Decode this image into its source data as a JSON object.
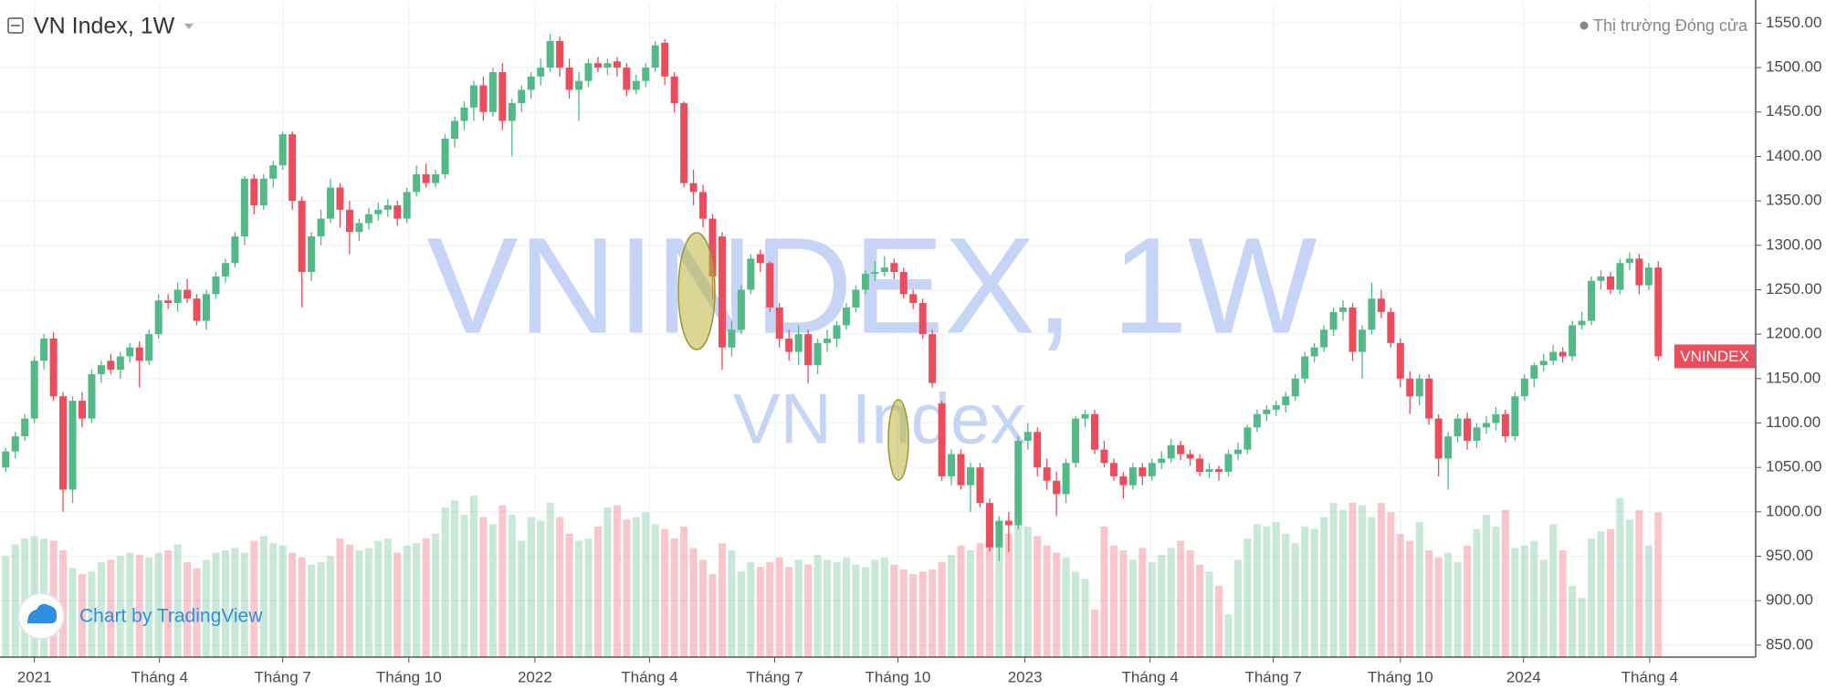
{
  "chart_data": {
    "type": "candlestick",
    "title": "VN Index, 1W",
    "status": "Thị trường Đóng cửa",
    "watermark": "VNINDEX, 1W",
    "watermark_subtitle": "VN Index",
    "branding": "Chart by TradingView",
    "last_label": "VNINDEX",
    "up_color": "#53b987",
    "down_color": "#eb4d5c",
    "grid": true,
    "ylim": [
      836.5,
      1572
    ],
    "yticks": [
      {
        "value": 850,
        "label": "850.00"
      },
      {
        "value": 900,
        "label": "900.00"
      },
      {
        "value": 950,
        "label": "950.00"
      },
      {
        "value": 1000,
        "label": "1000.00"
      },
      {
        "value": 1050,
        "label": "1050.00"
      },
      {
        "value": 1100,
        "label": "1100.00"
      },
      {
        "value": 1150,
        "label": "1150.00"
      },
      {
        "value": 1200,
        "label": "1200.00"
      },
      {
        "value": 1250,
        "label": "1250.00"
      },
      {
        "value": 1300,
        "label": "1300.00"
      },
      {
        "value": 1350,
        "label": "1350.00"
      },
      {
        "value": 1400,
        "label": "1400.00"
      },
      {
        "value": 1450,
        "label": "1450.00"
      },
      {
        "value": 1500,
        "label": "1500.00"
      },
      {
        "value": 1550,
        "label": "1550.00"
      }
    ],
    "xlim": [
      -0.6,
      183.2
    ],
    "xticks": [
      {
        "value": 3,
        "label": "2021"
      },
      {
        "value": 16.1,
        "label": "Tháng 4"
      },
      {
        "value": 29,
        "label": "Tháng 7"
      },
      {
        "value": 42.2,
        "label": "Tháng 10"
      },
      {
        "value": 55.4,
        "label": "2022"
      },
      {
        "value": 67.4,
        "label": "Tháng 4"
      },
      {
        "value": 80.5,
        "label": "Tháng 7"
      },
      {
        "value": 93.4,
        "label": "Tháng 10"
      },
      {
        "value": 106.7,
        "label": "2023"
      },
      {
        "value": 119.8,
        "label": "Tháng 4"
      },
      {
        "value": 132.7,
        "label": "Tháng 7"
      },
      {
        "value": 146,
        "label": "Tháng 10"
      },
      {
        "value": 158.9,
        "label": "2024"
      },
      {
        "value": 172.1,
        "label": "Tháng 4"
      }
    ],
    "candles": [
      [
        1050,
        1072,
        1045,
        1068
      ],
      [
        1068,
        1090,
        1060,
        1085
      ],
      [
        1085,
        1110,
        1080,
        1105
      ],
      [
        1105,
        1175,
        1100,
        1170
      ],
      [
        1170,
        1200,
        1160,
        1195
      ],
      [
        1195,
        1202,
        1125,
        1130
      ],
      [
        1130,
        1135,
        1000,
        1025
      ],
      [
        1025,
        1130,
        1010,
        1125
      ],
      [
        1125,
        1135,
        1095,
        1105
      ],
      [
        1105,
        1160,
        1100,
        1155
      ],
      [
        1155,
        1170,
        1145,
        1165
      ],
      [
        1170,
        1178,
        1155,
        1160
      ],
      [
        1160,
        1180,
        1150,
        1175
      ],
      [
        1175,
        1190,
        1168,
        1185
      ],
      [
        1185,
        1192,
        1140,
        1170
      ],
      [
        1170,
        1205,
        1165,
        1200
      ],
      [
        1200,
        1245,
        1195,
        1238
      ],
      [
        1238,
        1245,
        1228,
        1235
      ],
      [
        1235,
        1258,
        1225,
        1250
      ],
      [
        1250,
        1262,
        1235,
        1240
      ],
      [
        1240,
        1245,
        1210,
        1215
      ],
      [
        1215,
        1250,
        1205,
        1245
      ],
      [
        1245,
        1270,
        1240,
        1265
      ],
      [
        1265,
        1285,
        1258,
        1280
      ],
      [
        1280,
        1315,
        1275,
        1310
      ],
      [
        1310,
        1378,
        1300,
        1375
      ],
      [
        1375,
        1380,
        1335,
        1345
      ],
      [
        1345,
        1380,
        1340,
        1375
      ],
      [
        1375,
        1395,
        1365,
        1390
      ],
      [
        1390,
        1428,
        1385,
        1425
      ],
      [
        1425,
        1428,
        1340,
        1350
      ],
      [
        1350,
        1355,
        1230,
        1270
      ],
      [
        1270,
        1315,
        1260,
        1310
      ],
      [
        1310,
        1340,
        1300,
        1330
      ],
      [
        1330,
        1375,
        1325,
        1365
      ],
      [
        1365,
        1370,
        1320,
        1340
      ],
      [
        1340,
        1350,
        1290,
        1315
      ],
      [
        1315,
        1330,
        1305,
        1325
      ],
      [
        1325,
        1342,
        1318,
        1335
      ],
      [
        1335,
        1348,
        1328,
        1340
      ],
      [
        1340,
        1352,
        1332,
        1345
      ],
      [
        1345,
        1350,
        1322,
        1330
      ],
      [
        1330,
        1365,
        1325,
        1360
      ],
      [
        1360,
        1390,
        1355,
        1380
      ],
      [
        1380,
        1392,
        1365,
        1370
      ],
      [
        1370,
        1385,
        1365,
        1380
      ],
      [
        1380,
        1425,
        1375,
        1420
      ],
      [
        1420,
        1445,
        1410,
        1440
      ],
      [
        1440,
        1462,
        1430,
        1455
      ],
      [
        1455,
        1485,
        1440,
        1480
      ],
      [
        1480,
        1490,
        1440,
        1450
      ],
      [
        1450,
        1500,
        1445,
        1495
      ],
      [
        1495,
        1505,
        1430,
        1440
      ],
      [
        1440,
        1465,
        1400,
        1460
      ],
      [
        1460,
        1480,
        1450,
        1475
      ],
      [
        1475,
        1495,
        1465,
        1490
      ],
      [
        1490,
        1510,
        1480,
        1500
      ],
      [
        1500,
        1538,
        1495,
        1530
      ],
      [
        1530,
        1535,
        1490,
        1500
      ],
      [
        1500,
        1510,
        1465,
        1475
      ],
      [
        1475,
        1495,
        1440,
        1485
      ],
      [
        1485,
        1510,
        1478,
        1505
      ],
      [
        1505,
        1512,
        1495,
        1500
      ],
      [
        1500,
        1510,
        1492,
        1505
      ],
      [
        1507,
        1512,
        1490,
        1500
      ],
      [
        1500,
        1505,
        1468,
        1475
      ],
      [
        1475,
        1492,
        1470,
        1485
      ],
      [
        1485,
        1505,
        1478,
        1500
      ],
      [
        1500,
        1530,
        1495,
        1525
      ],
      [
        1528,
        1532,
        1480,
        1490
      ],
      [
        1490,
        1495,
        1450,
        1460
      ],
      [
        1460,
        1462,
        1365,
        1370
      ],
      [
        1370,
        1385,
        1345,
        1360
      ],
      [
        1360,
        1368,
        1320,
        1330
      ],
      [
        1330,
        1335,
        1240,
        1265
      ],
      [
        1310,
        1315,
        1160,
        1185
      ],
      [
        1185,
        1215,
        1175,
        1205
      ],
      [
        1205,
        1255,
        1200,
        1250
      ],
      [
        1250,
        1290,
        1245,
        1285
      ],
      [
        1290,
        1295,
        1270,
        1280
      ],
      [
        1280,
        1282,
        1225,
        1230
      ],
      [
        1230,
        1235,
        1185,
        1195
      ],
      [
        1195,
        1205,
        1170,
        1180
      ],
      [
        1180,
        1210,
        1165,
        1200
      ],
      [
        1200,
        1205,
        1145,
        1165
      ],
      [
        1165,
        1195,
        1155,
        1190
      ],
      [
        1190,
        1205,
        1180,
        1195
      ],
      [
        1195,
        1215,
        1185,
        1210
      ],
      [
        1210,
        1235,
        1205,
        1230
      ],
      [
        1230,
        1255,
        1225,
        1250
      ],
      [
        1250,
        1272,
        1245,
        1268
      ],
      [
        1268,
        1282,
        1260,
        1270
      ],
      [
        1270,
        1288,
        1265,
        1275
      ],
      [
        1280,
        1285,
        1262,
        1270
      ],
      [
        1270,
        1275,
        1240,
        1245
      ],
      [
        1245,
        1250,
        1228,
        1235
      ],
      [
        1235,
        1240,
        1195,
        1200
      ],
      [
        1200,
        1205,
        1140,
        1145
      ],
      [
        1122,
        1125,
        1035,
        1040
      ],
      [
        1040,
        1070,
        1030,
        1065
      ],
      [
        1065,
        1070,
        1025,
        1030
      ],
      [
        1030,
        1055,
        1000,
        1050
      ],
      [
        1050,
        1055,
        1005,
        1010
      ],
      [
        1010,
        1015,
        955,
        960
      ],
      [
        960,
        995,
        945,
        990
      ],
      [
        990,
        1000,
        955,
        985
      ],
      [
        985,
        1085,
        980,
        1080
      ],
      [
        1080,
        1100,
        1070,
        1090
      ],
      [
        1090,
        1095,
        1040,
        1050
      ],
      [
        1050,
        1060,
        1025,
        1035
      ],
      [
        1035,
        1045,
        995,
        1020
      ],
      [
        1020,
        1060,
        1010,
        1055
      ],
      [
        1055,
        1108,
        1050,
        1105
      ],
      [
        1105,
        1115,
        1095,
        1110
      ],
      [
        1110,
        1115,
        1065,
        1070
      ],
      [
        1070,
        1080,
        1050,
        1055
      ],
      [
        1055,
        1060,
        1035,
        1040
      ],
      [
        1040,
        1045,
        1015,
        1030
      ],
      [
        1030,
        1055,
        1025,
        1050
      ],
      [
        1050,
        1055,
        1030,
        1040
      ],
      [
        1040,
        1060,
        1035,
        1055
      ],
      [
        1055,
        1068,
        1048,
        1060
      ],
      [
        1060,
        1082,
        1055,
        1075
      ],
      [
        1075,
        1080,
        1058,
        1065
      ],
      [
        1065,
        1070,
        1052,
        1060
      ],
      [
        1060,
        1065,
        1040,
        1045
      ],
      [
        1045,
        1055,
        1038,
        1048
      ],
      [
        1048,
        1052,
        1035,
        1045
      ],
      [
        1045,
        1070,
        1040,
        1065
      ],
      [
        1065,
        1078,
        1058,
        1070
      ],
      [
        1070,
        1098,
        1065,
        1095
      ],
      [
        1095,
        1115,
        1090,
        1110
      ],
      [
        1110,
        1120,
        1102,
        1115
      ],
      [
        1115,
        1125,
        1108,
        1120
      ],
      [
        1120,
        1135,
        1112,
        1130
      ],
      [
        1130,
        1155,
        1125,
        1150
      ],
      [
        1150,
        1180,
        1145,
        1175
      ],
      [
        1175,
        1190,
        1168,
        1185
      ],
      [
        1185,
        1210,
        1180,
        1205
      ],
      [
        1205,
        1230,
        1198,
        1225
      ],
      [
        1225,
        1238,
        1215,
        1230
      ],
      [
        1230,
        1235,
        1170,
        1180
      ],
      [
        1180,
        1210,
        1150,
        1205
      ],
      [
        1205,
        1258,
        1200,
        1240
      ],
      [
        1240,
        1250,
        1218,
        1225
      ],
      [
        1225,
        1230,
        1185,
        1190
      ],
      [
        1190,
        1195,
        1140,
        1150
      ],
      [
        1150,
        1158,
        1110,
        1130
      ],
      [
        1130,
        1155,
        1120,
        1150
      ],
      [
        1150,
        1155,
        1098,
        1105
      ],
      [
        1105,
        1110,
        1040,
        1060
      ],
      [
        1060,
        1090,
        1025,
        1085
      ],
      [
        1085,
        1110,
        1078,
        1105
      ],
      [
        1105,
        1112,
        1070,
        1080
      ],
      [
        1080,
        1100,
        1072,
        1095
      ],
      [
        1095,
        1108,
        1088,
        1100
      ],
      [
        1100,
        1118,
        1092,
        1110
      ],
      [
        1110,
        1115,
        1078,
        1085
      ],
      [
        1085,
        1135,
        1080,
        1130
      ],
      [
        1130,
        1155,
        1125,
        1150
      ],
      [
        1150,
        1168,
        1140,
        1165
      ],
      [
        1165,
        1178,
        1158,
        1170
      ],
      [
        1170,
        1188,
        1165,
        1180
      ],
      [
        1180,
        1185,
        1168,
        1175
      ],
      [
        1175,
        1215,
        1170,
        1210
      ],
      [
        1210,
        1225,
        1205,
        1215
      ],
      [
        1215,
        1265,
        1210,
        1260
      ],
      [
        1260,
        1272,
        1250,
        1265
      ],
      [
        1265,
        1270,
        1245,
        1250
      ],
      [
        1250,
        1285,
        1245,
        1280
      ],
      [
        1280,
        1292,
        1272,
        1285
      ],
      [
        1285,
        1290,
        1245,
        1255
      ],
      [
        1255,
        1280,
        1250,
        1275
      ],
      [
        1275,
        1282,
        1170,
        1175
      ]
    ],
    "volume": [
      85,
      95,
      100,
      102,
      100,
      98,
      90,
      75,
      70,
      72,
      80,
      82,
      85,
      88,
      86,
      84,
      88,
      90,
      95,
      80,
      75,
      82,
      88,
      90,
      92,
      88,
      98,
      102,
      96,
      94,
      88,
      84,
      78,
      80,
      85,
      100,
      95,
      90,
      92,
      98,
      100,
      88,
      94,
      96,
      100,
      104,
      126,
      132,
      120,
      136,
      118,
      112,
      128,
      120,
      98,
      118,
      115,
      130,
      118,
      104,
      98,
      100,
      110,
      126,
      128,
      116,
      118,
      122,
      112,
      108,
      100,
      110,
      92,
      82,
      70,
      96,
      90,
      72,
      80,
      76,
      80,
      84,
      76,
      82,
      78,
      86,
      82,
      80,
      84,
      78,
      76,
      82,
      84,
      78,
      74,
      70,
      72,
      74,
      80,
      86,
      94,
      90,
      96,
      108,
      98,
      104,
      112,
      110,
      102,
      94,
      88,
      84,
      72,
      66,
      40,
      110,
      94,
      90,
      82,
      92,
      80,
      86,
      92,
      98,
      90,
      78,
      72,
      60,
      36,
      82,
      100,
      112,
      110,
      114,
      104,
      96,
      110,
      108,
      118,
      130,
      124,
      130,
      128,
      118,
      130,
      122,
      104,
      98,
      114,
      90,
      84,
      88,
      80,
      94,
      108,
      120,
      110,
      124,
      92,
      94,
      98,
      82,
      112,
      90,
      60,
      50,
      100,
      106,
      108,
      134,
      116,
      124,
      94,
      122
    ]
  }
}
